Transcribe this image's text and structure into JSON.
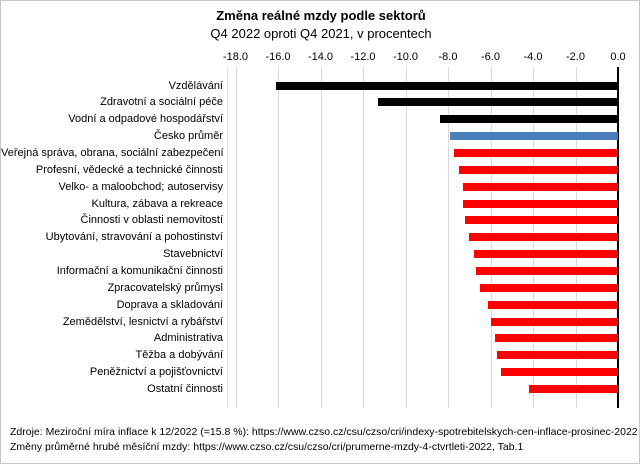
{
  "header": {
    "title": "Změna reálné mzdy podle sektorů",
    "subtitle": "Q4 2022 oproti Q4 2021, v procentech"
  },
  "footer": {
    "line1": "Zdroje: Meziroční míra inflace k 12/2022 (=15.8 %): https://www.czso.cz/csu/czso/cri/indexy-spotrebitelskych-cen-inflace-prosinec-2022",
    "line2": "Změny průměrné hrubé měsíční mzdy: https://www.czso.cz/csu/czso/cri/prumerne-mzdy-4-ctvrtleti-2022, Tab.1"
  },
  "colors": {
    "black": "#000000",
    "blue": "#4a7ebb",
    "red": "#fe0000",
    "grid": "#d9d9d9",
    "axis": "#000000",
    "background": "#ffffff"
  },
  "chart_data": {
    "type": "bar",
    "orientation": "horizontal",
    "title": "Změna reálné mzdy podle sektorů",
    "subtitle": "Q4 2022 oproti Q4 2021, v procentech",
    "xlabel": "",
    "ylabel": "",
    "xlim": [
      -18.4,
      0.5
    ],
    "xticks": [
      -18,
      -16,
      -14,
      -12,
      -10,
      -8,
      -6,
      -4,
      -2,
      0
    ],
    "xtick_labels": [
      "-18.0",
      "-16.0",
      "-14.0",
      "-12.0",
      "-10.0",
      "-8.0",
      "-6.0",
      "-4.0",
      "-2.0",
      "0.0"
    ],
    "grid": "vertical-only",
    "legend": "none",
    "axis_position": "top",
    "categories": [
      "Vzdělávání",
      "Zdravotní a sociální péče",
      "Vodní a odpadové hospodářství",
      "Česko průměr",
      "Veřejná správa, obrana, sociální zabezpečení",
      "Profesní, vědecké a technické činnosti",
      "Velko- a maloobchod; autoservisy",
      "Kultura, zábava a rekreace",
      "Činnosti v oblasti nemovitostí",
      "Ubytování, stravování a pohostinství",
      "Stavebnictví",
      "Informační a komunikační činnosti",
      "Zpracovatelský průmysl",
      "Doprava a skladování",
      "Zemědělství, lesnictví a rybářství",
      "Administrativa",
      "Těžba a dobývání",
      "Peněžnictví a pojišťovnictví",
      "Ostatní činnosti"
    ],
    "values": [
      -16.1,
      -11.3,
      -8.4,
      -7.9,
      -7.7,
      -7.5,
      -7.3,
      -7.3,
      -7.2,
      -7.0,
      -6.8,
      -6.7,
      -6.5,
      -6.1,
      -6.0,
      -5.8,
      -5.7,
      -5.5,
      -4.2
    ],
    "bar_colors": [
      "black",
      "black",
      "black",
      "blue",
      "red",
      "red",
      "red",
      "red",
      "red",
      "red",
      "red",
      "red",
      "red",
      "red",
      "red",
      "red",
      "red",
      "red",
      "red"
    ]
  }
}
